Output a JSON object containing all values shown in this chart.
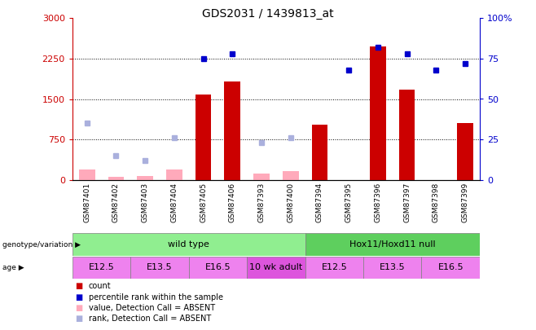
{
  "title": "GDS2031 / 1439813_at",
  "samples": [
    "GSM87401",
    "GSM87402",
    "GSM87403",
    "GSM87404",
    "GSM87405",
    "GSM87406",
    "GSM87393",
    "GSM87400",
    "GSM87394",
    "GSM87395",
    "GSM87396",
    "GSM87397",
    "GSM87398",
    "GSM87399"
  ],
  "count_present": [
    null,
    null,
    null,
    null,
    1580,
    1820,
    null,
    null,
    1020,
    null,
    2480,
    1670,
    null,
    1060
  ],
  "count_absent": [
    195,
    55,
    75,
    195,
    null,
    null,
    110,
    165,
    null,
    null,
    null,
    null,
    null,
    null
  ],
  "rank_present_pct": [
    null,
    null,
    null,
    null,
    75,
    78,
    null,
    null,
    null,
    68,
    82,
    78,
    68,
    72
  ],
  "rank_absent_pct": [
    35,
    null,
    null,
    26,
    null,
    null,
    23,
    26,
    null,
    null,
    null,
    null,
    null,
    null
  ],
  "rank_absent_light_pct": [
    null,
    15,
    12,
    null,
    null,
    null,
    null,
    null,
    null,
    null,
    null,
    null,
    null,
    null
  ],
  "ylim_left": [
    0,
    3000
  ],
  "ylim_right": [
    0,
    100
  ],
  "yticks_left": [
    0,
    750,
    1500,
    2250,
    3000
  ],
  "yticks_right": [
    0,
    25,
    50,
    75,
    100
  ],
  "genotype_groups": [
    {
      "label": "wild type",
      "start": 0,
      "end": 8,
      "color": "#90ee90"
    },
    {
      "label": "Hox11/Hoxd11 null",
      "start": 8,
      "end": 14,
      "color": "#5ecf5e"
    }
  ],
  "age_groups": [
    {
      "label": "E12.5",
      "start": 0,
      "end": 2,
      "color": "#ee82ee"
    },
    {
      "label": "E13.5",
      "start": 2,
      "end": 4,
      "color": "#ee82ee"
    },
    {
      "label": "E16.5",
      "start": 4,
      "end": 6,
      "color": "#ee82ee"
    },
    {
      "label": "10 wk adult",
      "start": 6,
      "end": 8,
      "color": "#dd55dd"
    },
    {
      "label": "E12.5",
      "start": 8,
      "end": 10,
      "color": "#ee82ee"
    },
    {
      "label": "E13.5",
      "start": 10,
      "end": 12,
      "color": "#ee82ee"
    },
    {
      "label": "E16.5",
      "start": 12,
      "end": 14,
      "color": "#ee82ee"
    }
  ],
  "bar_color_red": "#cc0000",
  "bar_color_pink": "#ffaabb",
  "dot_color_blue": "#0000cc",
  "dot_color_lightblue": "#aab0dd",
  "legend_items": [
    {
      "label": "count",
      "color": "#cc0000"
    },
    {
      "label": "percentile rank within the sample",
      "color": "#0000cc"
    },
    {
      "label": "value, Detection Call = ABSENT",
      "color": "#ffaabb"
    },
    {
      "label": "rank, Detection Call = ABSENT",
      "color": "#aab0dd"
    }
  ]
}
